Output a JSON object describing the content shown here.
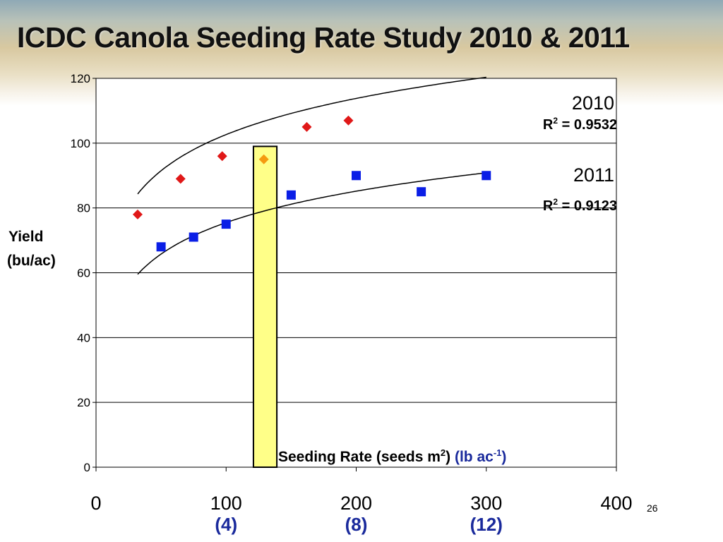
{
  "slide": {
    "title": "ICDC Canola Seeding Rate Study 2010 & 2011",
    "slide_number": "26"
  },
  "chart_data": {
    "type": "scatter",
    "title": "ICDC Canola Seeding Rate Study 2010 & 2011",
    "xlabel": "Seeding Rate (seeds m2) (lb ac-1)",
    "xlabel_main": "Seeding Rate (seeds m",
    "xlabel_sup": "2",
    "xlabel_close": ")",
    "xlabel_alt": "(lb ac",
    "xlabel_alt_sup": "-1",
    "xlabel_alt_close": ")",
    "ylabel_line1": "Yield",
    "ylabel_line2": "(bu/ac)",
    "xlim": [
      0,
      400
    ],
    "ylim": [
      0,
      120
    ],
    "x_ticks": [
      0,
      100,
      200,
      300,
      400
    ],
    "x_tick_labels": [
      "0",
      "100",
      "200",
      "300",
      "400"
    ],
    "x_secondary_labels": [
      {
        "x": 100,
        "label": "(4)"
      },
      {
        "x": 200,
        "label": "(8)"
      },
      {
        "x": 300,
        "label": "(12)"
      }
    ],
    "y_ticks": [
      0,
      20,
      40,
      60,
      80,
      100,
      120
    ],
    "y_tick_labels": [
      "0",
      "20",
      "40",
      "60",
      "80",
      "100",
      "120"
    ],
    "grid": "horizontal",
    "highlight_band": {
      "x_from": 121,
      "x_to": 139,
      "y_from": 0,
      "y_to": 99,
      "color": "#ffff88"
    },
    "series": [
      {
        "name": "2010",
        "r2_text": "R2 = 0.9532",
        "r2_prefix": "R",
        "r2_sup": "2",
        "r2_value": " = 0.9532",
        "marker": "diamond",
        "color": "#e01818",
        "x": [
          32,
          65,
          97,
          162,
          194
        ],
        "y": [
          78,
          89,
          96,
          105,
          107
        ],
        "trend": {
          "a": 28.5,
          "b": 16.1,
          "x_from": 32,
          "x_to": 300
        }
      },
      {
        "name": "2011",
        "r2_text": "R2 = 0.9123",
        "r2_prefix": "R",
        "r2_sup": "2",
        "r2_value": " = 0.9123",
        "marker": "square",
        "color": "#0a1ee6",
        "x": [
          50,
          75,
          100,
          150,
          200,
          250,
          300
        ],
        "y": [
          68,
          71,
          75,
          84,
          90,
          85,
          90
        ],
        "trend": {
          "a": 11.0,
          "b": 14.0,
          "x_from": 32,
          "x_to": 300
        }
      }
    ],
    "highlight_point": {
      "x": 129,
      "y": 95,
      "marker": "diamond",
      "color": "#f59a10"
    }
  }
}
